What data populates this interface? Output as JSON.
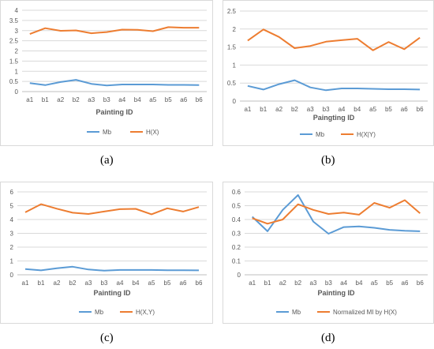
{
  "chart_data": [
    {
      "type": "line",
      "categories": [
        "a1",
        "b1",
        "a2",
        "b2",
        "a3",
        "b3",
        "a4",
        "b4",
        "a5",
        "b5",
        "a6",
        "b6"
      ],
      "xlabel": "Painting ID",
      "ylim": [
        0,
        4
      ],
      "yticks": [
        "0",
        "0.5",
        "1",
        "1.5",
        "2",
        "2.5",
        "3",
        "3.5",
        "4"
      ],
      "tickvals": [
        0,
        0.5,
        1,
        1.5,
        2,
        2.5,
        3,
        3.5,
        4
      ],
      "grid": true,
      "legend": "bottom",
      "caption": "(a)",
      "series": [
        {
          "name": "Mb",
          "color": "#5b9bd5",
          "values": [
            0.42,
            0.32,
            0.47,
            0.58,
            0.38,
            0.3,
            0.35,
            0.35,
            0.35,
            0.33,
            0.33,
            0.32
          ]
        },
        {
          "name": "H(X)",
          "color": "#ed7d31",
          "values": [
            2.83,
            3.12,
            2.99,
            3.01,
            2.87,
            2.93,
            3.05,
            3.04,
            2.97,
            3.17,
            3.14,
            3.14
          ]
        }
      ]
    },
    {
      "type": "line",
      "categories": [
        "a1",
        "b1",
        "a2",
        "b2",
        "a3",
        "b3",
        "a4",
        "b4",
        "a5",
        "b5",
        "a6",
        "b6"
      ],
      "xlabel": "Paingting ID",
      "ylim": [
        0,
        2.5
      ],
      "yticks": [
        "0",
        "0.5",
        "1",
        "1.5",
        "2",
        "2.5"
      ],
      "tickvals": [
        0,
        0.5,
        1,
        1.5,
        2,
        2.5
      ],
      "grid": true,
      "legend": "bottom",
      "caption": "(b)",
      "series": [
        {
          "name": "Mb",
          "color": "#5b9bd5",
          "values": [
            0.42,
            0.32,
            0.47,
            0.58,
            0.38,
            0.3,
            0.35,
            0.35,
            0.34,
            0.33,
            0.33,
            0.32
          ]
        },
        {
          "name": "H(X|Y)",
          "color": "#ed7d31",
          "values": [
            1.68,
            1.99,
            1.78,
            1.47,
            1.53,
            1.65,
            1.69,
            1.73,
            1.41,
            1.64,
            1.44,
            1.76
          ]
        }
      ]
    },
    {
      "type": "line",
      "categories": [
        "a1",
        "b1",
        "a2",
        "b2",
        "a3",
        "b3",
        "a4",
        "b4",
        "a5",
        "b5",
        "a6",
        "b6"
      ],
      "xlabel": "Painting ID",
      "ylim": [
        0,
        6
      ],
      "yticks": [
        "0",
        "1",
        "2",
        "3",
        "4",
        "5",
        "6"
      ],
      "tickvals": [
        0,
        1,
        2,
        3,
        4,
        5,
        6
      ],
      "grid": true,
      "legend": "bottom",
      "caption": "(c)",
      "series": [
        {
          "name": "Mb",
          "color": "#5b9bd5",
          "values": [
            0.42,
            0.32,
            0.47,
            0.58,
            0.38,
            0.3,
            0.35,
            0.35,
            0.35,
            0.33,
            0.33,
            0.32
          ]
        },
        {
          "name": "H(X,Y)",
          "color": "#ed7d31",
          "values": [
            4.52,
            5.11,
            4.78,
            4.49,
            4.4,
            4.58,
            4.75,
            4.77,
            4.38,
            4.81,
            4.58,
            4.9
          ]
        }
      ]
    },
    {
      "type": "line",
      "categories": [
        "a1",
        "b1",
        "a2",
        "b2",
        "a3",
        "b3",
        "a4",
        "b4",
        "a5",
        "b5",
        "a6",
        "b6"
      ],
      "xlabel": "Painting ID",
      "ylim": [
        0,
        0.6
      ],
      "yticks": [
        "0",
        "0.1",
        "0.2",
        "0.3",
        "0.4",
        "0.5",
        "0.6"
      ],
      "tickvals": [
        0,
        0.1,
        0.2,
        0.3,
        0.4,
        0.5,
        0.6
      ],
      "grid": true,
      "legend": "bottom",
      "caption": "(d)",
      "series": [
        {
          "name": "Mb",
          "color": "#5b9bd5",
          "values": [
            0.42,
            0.315,
            0.47,
            0.577,
            0.385,
            0.297,
            0.345,
            0.35,
            0.34,
            0.325,
            0.318,
            0.315
          ]
        },
        {
          "name": "Normalized MI by H(X)",
          "color": "#ed7d31",
          "values": [
            0.41,
            0.37,
            0.4,
            0.51,
            0.47,
            0.44,
            0.45,
            0.435,
            0.52,
            0.485,
            0.54,
            0.445
          ]
        }
      ]
    }
  ]
}
